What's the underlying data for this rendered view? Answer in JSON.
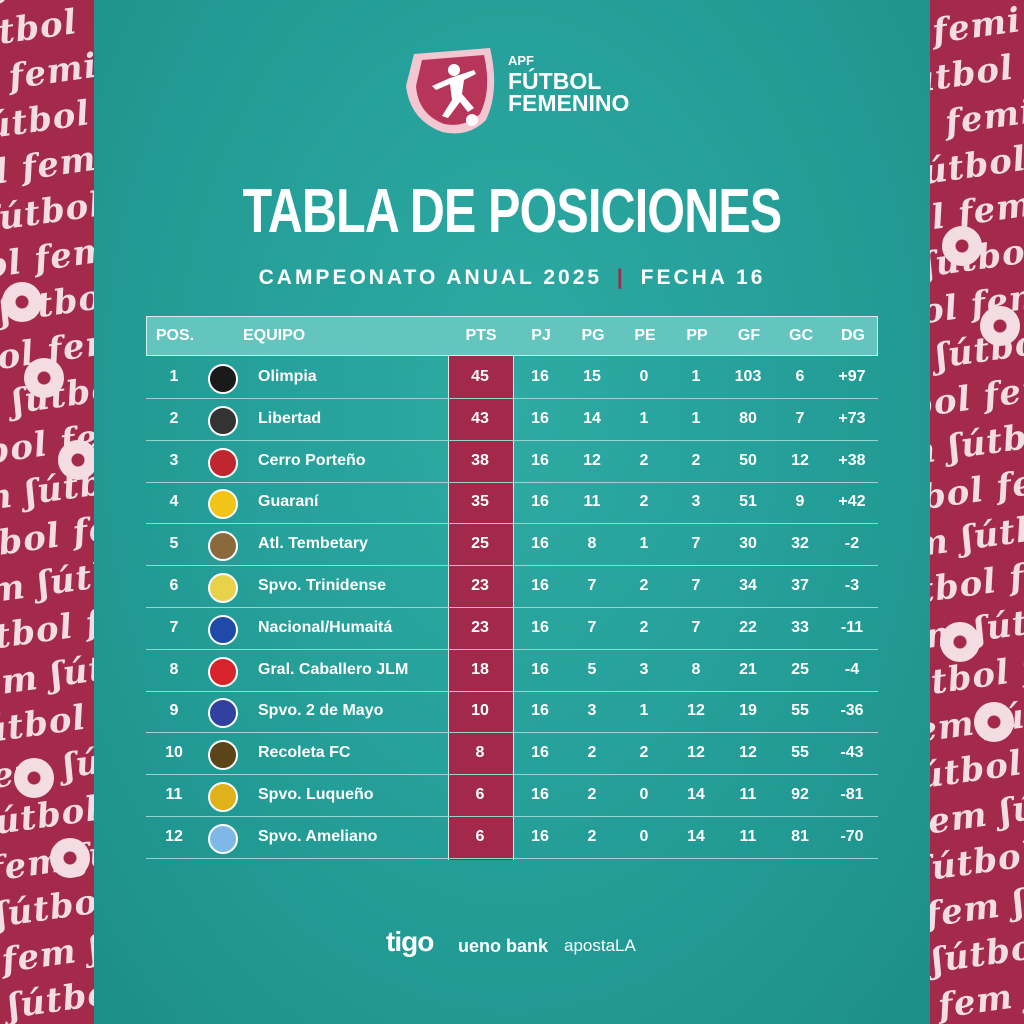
{
  "brand": {
    "line1": "APF",
    "line2": "FÚTBOL",
    "line3": "FEMENINO"
  },
  "title": "TABLA DE POSICIONES",
  "subtitle": {
    "left": "CAMPEONATO ANUAL 2025",
    "separator": "|",
    "right": "FECHA 16"
  },
  "table": {
    "headers": {
      "pos": "POS.",
      "team": "EQUIPO",
      "pts": "PTS",
      "pj": "PJ",
      "pg": "PG",
      "pe": "PE",
      "pp": "PP",
      "gf": "GF",
      "gc": "GC",
      "dg": "DG"
    },
    "rows": [
      {
        "pos": "1",
        "team": "Olimpia",
        "pts": "45",
        "pj": "16",
        "pg": "15",
        "pe": "0",
        "pp": "1",
        "gf": "103",
        "gc": "6",
        "dg": "+97",
        "badge_color": "#1a1a1a",
        "badge_icon": "olimpia-crest"
      },
      {
        "pos": "2",
        "team": "Libertad",
        "pts": "43",
        "pj": "16",
        "pg": "14",
        "pe": "1",
        "pp": "1",
        "gf": "80",
        "gc": "7",
        "dg": "+73",
        "badge_color": "#333333",
        "badge_icon": "libertad-crest"
      },
      {
        "pos": "3",
        "team": "Cerro Porteño",
        "pts": "38",
        "pj": "16",
        "pg": "12",
        "pe": "2",
        "pp": "2",
        "gf": "50",
        "gc": "12",
        "dg": "+38",
        "badge_color": "#c0262e",
        "badge_icon": "cerro-porteno-crest"
      },
      {
        "pos": "4",
        "team": "Guaraní",
        "pts": "35",
        "pj": "16",
        "pg": "11",
        "pe": "2",
        "pp": "3",
        "gf": "51",
        "gc": "9",
        "dg": "+42",
        "badge_color": "#f2c418",
        "badge_icon": "guarani-crest"
      },
      {
        "pos": "5",
        "team": "Atl. Tembetary",
        "pts": "25",
        "pj": "16",
        "pg": "8",
        "pe": "1",
        "pp": "7",
        "gf": "30",
        "gc": "32",
        "dg": "-2",
        "badge_color": "#8a6a3c",
        "badge_icon": "tembetary-crest"
      },
      {
        "pos": "6",
        "team": "Spvo. Trinidense",
        "pts": "23",
        "pj": "16",
        "pg": "7",
        "pe": "2",
        "pp": "7",
        "gf": "34",
        "gc": "37",
        "dg": "-3",
        "badge_color": "#e8d24a",
        "badge_icon": "trinidense-crest"
      },
      {
        "pos": "7",
        "team": "Nacional/Humaitá",
        "pts": "23",
        "pj": "16",
        "pg": "7",
        "pe": "2",
        "pp": "7",
        "gf": "22",
        "gc": "33",
        "dg": "-11",
        "badge_color": "#1f4aa8",
        "badge_icon": "nacional-humaita-crest"
      },
      {
        "pos": "8",
        "team": "Gral. Caballero JLM",
        "pts": "18",
        "pj": "16",
        "pg": "5",
        "pe": "3",
        "pp": "8",
        "gf": "21",
        "gc": "25",
        "dg": "-4",
        "badge_color": "#d8232a",
        "badge_icon": "caballero-crest"
      },
      {
        "pos": "9",
        "team": "Spvo. 2 de Mayo",
        "pts": "10",
        "pj": "16",
        "pg": "3",
        "pe": "1",
        "pp": "12",
        "gf": "19",
        "gc": "55",
        "dg": "-36",
        "badge_color": "#3240a0",
        "badge_icon": "dos-de-mayo-crest"
      },
      {
        "pos": "10",
        "team": "Recoleta FC",
        "pts": "8",
        "pj": "16",
        "pg": "2",
        "pe": "2",
        "pp": "12",
        "gf": "12",
        "gc": "55",
        "dg": "-43",
        "badge_color": "#5a4418",
        "badge_icon": "recoleta-crest"
      },
      {
        "pos": "11",
        "team": "Spvo. Luqueño",
        "pts": "6",
        "pj": "16",
        "pg": "2",
        "pe": "0",
        "pp": "14",
        "gf": "11",
        "gc": "92",
        "dg": "-81",
        "badge_color": "#e0b21a",
        "badge_icon": "luqueno-crest"
      },
      {
        "pos": "12",
        "team": "Spvo. Ameliano",
        "pts": "6",
        "pj": "16",
        "pg": "2",
        "pe": "0",
        "pp": "14",
        "gf": "11",
        "gc": "81",
        "dg": "-70",
        "badge_color": "#7fb8e6",
        "badge_icon": "ameliano-crest"
      }
    ]
  },
  "sponsors": {
    "s1": "tigo",
    "s2": "ueno bank",
    "s3": "apostaLA"
  },
  "colors": {
    "teal": "#239c96",
    "header": "#64c4be",
    "maroon": "#a3294a",
    "white": "#ffffff"
  }
}
